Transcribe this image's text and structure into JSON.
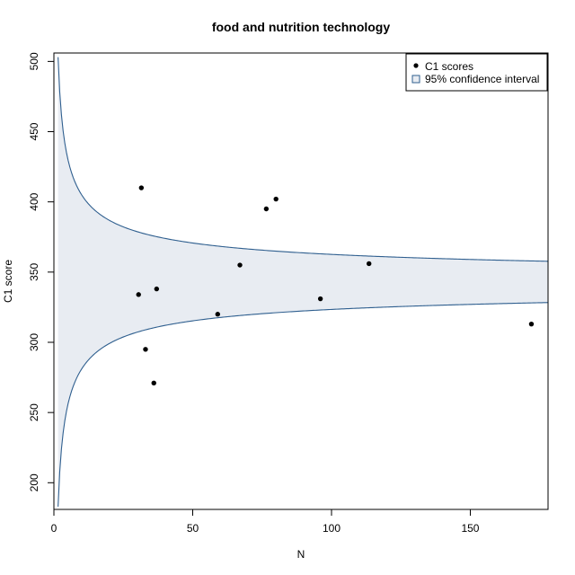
{
  "chart_data": {
    "type": "scatter",
    "title": "food and nutrition technology",
    "xlabel": "N",
    "ylabel": "C1 score",
    "xlim": [
      0,
      178
    ],
    "ylim": [
      181,
      506
    ],
    "x_ticks": [
      0,
      50,
      100,
      150
    ],
    "y_ticks": [
      200,
      250,
      300,
      350,
      400,
      450,
      500
    ],
    "grid": false,
    "legend": {
      "placement": "top-right",
      "entries": [
        "C1 scores",
        "95% confidence interval"
      ]
    },
    "series": [
      {
        "name": "C1 scores",
        "points": [
          {
            "x": 31.5,
            "y": 410
          },
          {
            "x": 30.5,
            "y": 334
          },
          {
            "x": 37,
            "y": 338
          },
          {
            "x": 33,
            "y": 295
          },
          {
            "x": 36,
            "y": 271
          },
          {
            "x": 59,
            "y": 320
          },
          {
            "x": 67,
            "y": 355
          },
          {
            "x": 76.5,
            "y": 395
          },
          {
            "x": 80,
            "y": 402
          },
          {
            "x": 96,
            "y": 331
          },
          {
            "x": 113.5,
            "y": 356
          },
          {
            "x": 172,
            "y": 313
          }
        ]
      }
    ],
    "confidence_band": {
      "name": "95% confidence interval",
      "center": 343,
      "z": 1.96,
      "sd": 100
    },
    "colors": {
      "band_fill": "#e8ecf2",
      "band_line": "#2f5f8f",
      "points": "#000000",
      "frame": "#000000"
    }
  }
}
